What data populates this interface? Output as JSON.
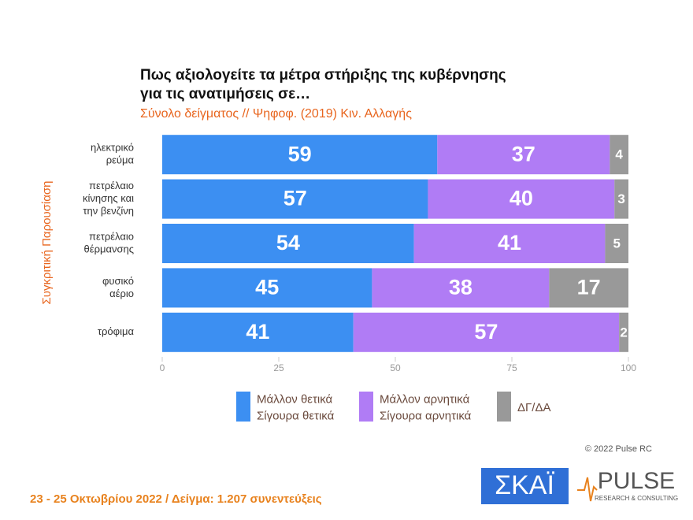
{
  "chart_data": {
    "type": "stacked-bar-horizontal",
    "title": [
      "Πως αξιολογείτε τα μέτρα στήριξης της κυβέρνησης",
      "για τις ανατιμήσεις σε…"
    ],
    "subtitle": "Σύνολο δείγματος // Ψηφοφ. (2019)  Κιν. Αλλαγής",
    "y_label": "Συγκριτική Παρουσίαση",
    "categories": [
      [
        "ηλεκτρικό",
        "ρεύμα"
      ],
      [
        "πετρέλαιο",
        "κίνησης και",
        "την βενζίνη"
      ],
      [
        "πετρέλαιο",
        "θέρμανσης"
      ],
      [
        "φυσικό",
        "αέριο"
      ],
      [
        "τρόφιμα"
      ]
    ],
    "series": [
      {
        "name": [
          "Μάλλον θετικά",
          "Σίγουρα θετικά"
        ],
        "color": "#3c8ff2",
        "values": [
          59,
          57,
          54,
          45,
          41
        ]
      },
      {
        "name": [
          "Μάλλον αρνητικά",
          "Σίγουρα αρνητικά"
        ],
        "color": "#b07cf5",
        "values": [
          37,
          40,
          41,
          38,
          57
        ]
      },
      {
        "name": [
          "ΔΓ/ΔΑ"
        ],
        "color": "#999999",
        "values": [
          4,
          3,
          5,
          17,
          2
        ]
      }
    ],
    "xlim": [
      0,
      100
    ],
    "xticks": [
      0,
      25,
      50,
      75,
      100
    ],
    "copyright": "© 2022 Pulse RC",
    "footer": "23 - 25 Οκτωβρίου 2022  /  Δείγμα:  1.207 συνεντεύξεις",
    "logo_left": "ΣΚΑΪ",
    "logo_right": "PULSE",
    "logo_right_sub": "RESEARCH & CONSULTING"
  }
}
